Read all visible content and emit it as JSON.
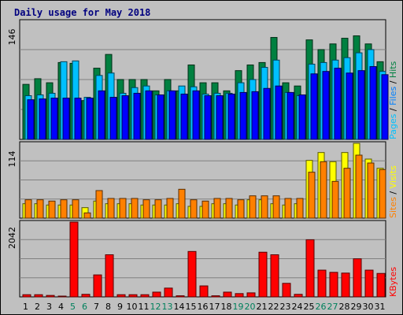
{
  "title": "Daily usage for May 2018",
  "chart_data": {
    "type": "bar",
    "title": "Daily usage for May 2018",
    "categories": [
      "1",
      "2",
      "3",
      "4",
      "5",
      "6",
      "7",
      "8",
      "9",
      "10",
      "11",
      "12",
      "13",
      "14",
      "15",
      "16",
      "17",
      "18",
      "19",
      "20",
      "21",
      "22",
      "23",
      "24",
      "25",
      "26",
      "27",
      "28",
      "29",
      "30",
      "31"
    ],
    "weekend_days": [
      "5",
      "6",
      "12",
      "13",
      "19",
      "20",
      "26",
      "27"
    ],
    "panels": [
      {
        "id": "hits-panel",
        "max_label": "146",
        "ylim": [
          0,
          146
        ],
        "grid": true,
        "series": [
          {
            "name": "Hits",
            "color": "#008040",
            "values": [
              68,
              75,
              70,
              95,
              94,
              48,
              88,
              105,
              74,
              74,
              74,
              60,
              74,
              60,
              92,
              70,
              70,
              60,
              85,
              92,
              95,
              126,
              70,
              66,
              123,
              111,
              118,
              125,
              128,
              118,
              96
            ]
          },
          {
            "name": "Files",
            "color": "#00c0ff",
            "values": [
              54,
              55,
              57,
              96,
              97,
              52,
              79,
              82,
              57,
              64,
              66,
              55,
              60,
              66,
              65,
              56,
              57,
              57,
              70,
              74,
              89,
              98,
              58,
              54,
              93,
              95,
              98,
              101,
              107,
              111,
              84
            ]
          },
          {
            "name": "Pages",
            "color": "#0000ff",
            "values": [
              49,
              50,
              51,
              51,
              51,
              51,
              60,
              52,
              54,
              57,
              60,
              55,
              60,
              56,
              60,
              54,
              54,
              56,
              58,
              59,
              63,
              66,
              58,
              55,
              81,
              84,
              88,
              82,
              85,
              90,
              80
            ]
          }
        ]
      },
      {
        "id": "visits-panel",
        "max_label": "114",
        "ylim": [
          0,
          114
        ],
        "grid": true,
        "series": [
          {
            "name": "Visits",
            "color": "#ffff00",
            "values": [
              22,
              22,
              20,
              20,
              20,
              16,
              26,
              22,
              22,
              22,
              20,
              20,
              20,
              22,
              18,
              18,
              22,
              22,
              20,
              28,
              28,
              22,
              20,
              22,
              88,
              100,
              86,
              100,
              114,
              90,
              76
            ]
          },
          {
            "name": "Sites",
            "color": "#ff8000",
            "values": [
              28,
              28,
              26,
              28,
              28,
              8,
              42,
              30,
              30,
              30,
              28,
              28,
              30,
              44,
              28,
              26,
              30,
              30,
              28,
              34,
              34,
              34,
              30,
              30,
              70,
              86,
              56,
              76,
              96,
              84,
              74
            ]
          }
        ]
      },
      {
        "id": "kbytes-panel",
        "max_label": "2042",
        "ylim": [
          0,
          2042
        ],
        "grid": true,
        "series": [
          {
            "name": "KBytes",
            "color": "#ff0000",
            "values": [
              60,
              60,
              40,
              20,
              2042,
              70,
              600,
              1150,
              60,
              60,
              60,
              130,
              240,
              30,
              1240,
              300,
              30,
              130,
              90,
              110,
              1220,
              1150,
              370,
              70,
              1560,
              730,
              670,
              650,
              1040,
              730,
              640
            ]
          }
        ]
      }
    ],
    "legends": {
      "hits": [
        {
          "text": "Pages",
          "color": "#00c0ff"
        },
        {
          "text": " / ",
          "color": "#000000"
        },
        {
          "text": "Files",
          "color": "#0080ff"
        },
        {
          "text": " / ",
          "color": "#000000"
        },
        {
          "text": "Hits",
          "color": "#008040"
        }
      ],
      "visits": [
        {
          "text": "Sites",
          "color": "#ff8000"
        },
        {
          "text": " / ",
          "color": "#000000"
        },
        {
          "text": "Visits",
          "color": "#ffff00"
        }
      ],
      "kbytes": [
        {
          "text": "KBytes",
          "color": "#ff0000"
        }
      ]
    },
    "day_label_colors": {
      "weekday": "#000000",
      "weekend": "#00805c"
    }
  }
}
